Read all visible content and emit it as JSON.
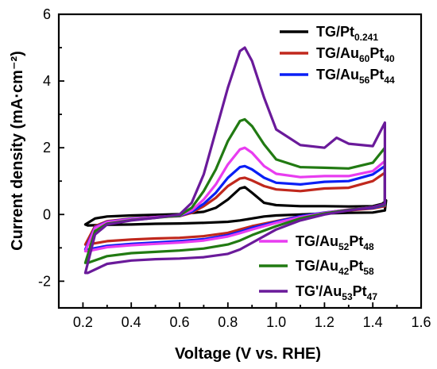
{
  "chart_data": {
    "type": "line",
    "xlabel": "Voltage (V vs. RHE)",
    "ylabel": "Current density (mA·cm⁻²)",
    "xlim": [
      0.1,
      1.6
    ],
    "ylim": [
      -2.8,
      6
    ],
    "xticks": [
      "0.2",
      "0.4",
      "0.6",
      "0.8",
      "1.0",
      "1.2",
      "1.4",
      "1.6"
    ],
    "yticks": [
      "-2",
      "0",
      "2",
      "4",
      "6"
    ],
    "grid": false,
    "legend_placement": "top-right and bottom-right",
    "series": [
      {
        "name": "TG/Pt0.241",
        "label_main": "TG/Pt",
        "label_sub": "0.241",
        "label_tail": "",
        "color": "#000000",
        "upper": [
          [
            0.21,
            -0.3
          ],
          [
            0.25,
            -0.12
          ],
          [
            0.3,
            -0.06
          ],
          [
            0.4,
            -0.03
          ],
          [
            0.5,
            -0.01
          ],
          [
            0.6,
            0.01
          ],
          [
            0.7,
            0.08
          ],
          [
            0.75,
            0.2
          ],
          [
            0.8,
            0.45
          ],
          [
            0.85,
            0.78
          ],
          [
            0.87,
            0.82
          ],
          [
            0.9,
            0.65
          ],
          [
            0.95,
            0.35
          ],
          [
            1.0,
            0.28
          ],
          [
            1.1,
            0.25
          ],
          [
            1.2,
            0.25
          ],
          [
            1.3,
            0.24
          ],
          [
            1.4,
            0.25
          ],
          [
            1.44,
            0.32
          ],
          [
            1.455,
            0.42
          ]
        ],
        "lower": [
          [
            1.455,
            0.42
          ],
          [
            1.45,
            0.12
          ],
          [
            1.4,
            0.06
          ],
          [
            1.3,
            0.05
          ],
          [
            1.2,
            0.03
          ],
          [
            1.1,
            0.0
          ],
          [
            1.0,
            -0.03
          ],
          [
            0.95,
            -0.06
          ],
          [
            0.9,
            -0.12
          ],
          [
            0.85,
            -0.18
          ],
          [
            0.8,
            -0.22
          ],
          [
            0.7,
            -0.25
          ],
          [
            0.6,
            -0.27
          ],
          [
            0.5,
            -0.28
          ],
          [
            0.4,
            -0.3
          ],
          [
            0.3,
            -0.31
          ],
          [
            0.22,
            -0.33
          ],
          [
            0.21,
            -0.3
          ]
        ]
      },
      {
        "name": "TG/Au60Pt40",
        "label_main": "TG/Au",
        "label_sub": "60",
        "label_tail": "Pt",
        "label_sub2": "40",
        "color": "#c0281d",
        "upper": [
          [
            0.21,
            -0.9
          ],
          [
            0.25,
            -0.35
          ],
          [
            0.3,
            -0.2
          ],
          [
            0.4,
            -0.12
          ],
          [
            0.5,
            -0.08
          ],
          [
            0.6,
            -0.05
          ],
          [
            0.65,
            0.05
          ],
          [
            0.7,
            0.25
          ],
          [
            0.75,
            0.5
          ],
          [
            0.8,
            0.85
          ],
          [
            0.85,
            1.08
          ],
          [
            0.87,
            1.1
          ],
          [
            0.9,
            1.02
          ],
          [
            0.95,
            0.85
          ],
          [
            1.0,
            0.75
          ],
          [
            1.1,
            0.7
          ],
          [
            1.2,
            0.78
          ],
          [
            1.3,
            0.8
          ],
          [
            1.4,
            1.0
          ],
          [
            1.45,
            1.25
          ]
        ],
        "lower": [
          [
            1.45,
            1.25
          ],
          [
            1.45,
            0.25
          ],
          [
            1.4,
            0.18
          ],
          [
            1.3,
            0.12
          ],
          [
            1.2,
            0.05
          ],
          [
            1.1,
            -0.05
          ],
          [
            1.0,
            -0.2
          ],
          [
            0.9,
            -0.35
          ],
          [
            0.85,
            -0.45
          ],
          [
            0.8,
            -0.55
          ],
          [
            0.7,
            -0.65
          ],
          [
            0.6,
            -0.7
          ],
          [
            0.5,
            -0.72
          ],
          [
            0.4,
            -0.75
          ],
          [
            0.3,
            -0.8
          ],
          [
            0.22,
            -0.9
          ],
          [
            0.21,
            -0.9
          ]
        ]
      },
      {
        "name": "TG/Au56Pt44",
        "label_main": "TG/Au",
        "label_sub": "56",
        "label_tail": "Pt",
        "label_sub2": "44",
        "color": "#0a1ff5",
        "upper": [
          [
            0.21,
            -1.05
          ],
          [
            0.25,
            -0.38
          ],
          [
            0.3,
            -0.22
          ],
          [
            0.4,
            -0.13
          ],
          [
            0.5,
            -0.08
          ],
          [
            0.6,
            -0.04
          ],
          [
            0.65,
            0.08
          ],
          [
            0.7,
            0.32
          ],
          [
            0.75,
            0.65
          ],
          [
            0.8,
            1.1
          ],
          [
            0.85,
            1.42
          ],
          [
            0.87,
            1.45
          ],
          [
            0.9,
            1.35
          ],
          [
            0.95,
            1.1
          ],
          [
            1.0,
            0.95
          ],
          [
            1.1,
            0.9
          ],
          [
            1.2,
            0.98
          ],
          [
            1.3,
            1.0
          ],
          [
            1.4,
            1.2
          ],
          [
            1.45,
            1.45
          ]
        ],
        "lower": [
          [
            1.45,
            1.45
          ],
          [
            1.45,
            0.28
          ],
          [
            1.4,
            0.2
          ],
          [
            1.3,
            0.14
          ],
          [
            1.2,
            0.06
          ],
          [
            1.1,
            -0.05
          ],
          [
            1.0,
            -0.22
          ],
          [
            0.9,
            -0.4
          ],
          [
            0.85,
            -0.52
          ],
          [
            0.8,
            -0.62
          ],
          [
            0.7,
            -0.74
          ],
          [
            0.6,
            -0.8
          ],
          [
            0.5,
            -0.84
          ],
          [
            0.4,
            -0.88
          ],
          [
            0.3,
            -0.94
          ],
          [
            0.22,
            -1.05
          ],
          [
            0.21,
            -1.05
          ]
        ]
      },
      {
        "name": "TG/Au52Pt48",
        "label_main": "TG/Au",
        "label_sub": "52",
        "label_tail": "Pt",
        "label_sub2": "48",
        "color": "#e83cf0",
        "upper": [
          [
            0.21,
            -1.1
          ],
          [
            0.25,
            -0.4
          ],
          [
            0.3,
            -0.23
          ],
          [
            0.4,
            -0.14
          ],
          [
            0.5,
            -0.08
          ],
          [
            0.6,
            -0.03
          ],
          [
            0.65,
            0.12
          ],
          [
            0.7,
            0.45
          ],
          [
            0.75,
            0.9
          ],
          [
            0.8,
            1.5
          ],
          [
            0.85,
            1.95
          ],
          [
            0.87,
            2.0
          ],
          [
            0.9,
            1.85
          ],
          [
            0.95,
            1.45
          ],
          [
            1.0,
            1.22
          ],
          [
            1.1,
            1.12
          ],
          [
            1.2,
            1.15
          ],
          [
            1.3,
            1.15
          ],
          [
            1.4,
            1.3
          ],
          [
            1.45,
            1.6
          ]
        ],
        "lower": [
          [
            1.45,
            1.6
          ],
          [
            1.45,
            0.3
          ],
          [
            1.4,
            0.22
          ],
          [
            1.3,
            0.15
          ],
          [
            1.2,
            0.05
          ],
          [
            1.1,
            -0.08
          ],
          [
            1.0,
            -0.25
          ],
          [
            0.9,
            -0.45
          ],
          [
            0.85,
            -0.56
          ],
          [
            0.8,
            -0.66
          ],
          [
            0.7,
            -0.78
          ],
          [
            0.6,
            -0.84
          ],
          [
            0.5,
            -0.88
          ],
          [
            0.4,
            -0.92
          ],
          [
            0.3,
            -0.98
          ],
          [
            0.22,
            -1.1
          ],
          [
            0.21,
            -1.1
          ]
        ]
      },
      {
        "name": "TG/Au42Pt58",
        "label_main": "TG/Au",
        "label_sub": "42",
        "label_tail": "Pt",
        "label_sub2": "58",
        "color": "#217a12",
        "upper": [
          [
            0.21,
            -1.45
          ],
          [
            0.25,
            -0.5
          ],
          [
            0.3,
            -0.28
          ],
          [
            0.4,
            -0.17
          ],
          [
            0.5,
            -0.1
          ],
          [
            0.6,
            -0.03
          ],
          [
            0.65,
            0.2
          ],
          [
            0.7,
            0.7
          ],
          [
            0.75,
            1.35
          ],
          [
            0.8,
            2.2
          ],
          [
            0.85,
            2.8
          ],
          [
            0.87,
            2.85
          ],
          [
            0.9,
            2.65
          ],
          [
            0.95,
            2.1
          ],
          [
            1.0,
            1.65
          ],
          [
            1.1,
            1.42
          ],
          [
            1.2,
            1.4
          ],
          [
            1.3,
            1.38
          ],
          [
            1.4,
            1.55
          ],
          [
            1.45,
            2.0
          ]
        ],
        "lower": [
          [
            1.45,
            2.0
          ],
          [
            1.45,
            0.3
          ],
          [
            1.4,
            0.22
          ],
          [
            1.3,
            0.14
          ],
          [
            1.2,
            0.03
          ],
          [
            1.1,
            -0.12
          ],
          [
            1.0,
            -0.35
          ],
          [
            0.9,
            -0.62
          ],
          [
            0.85,
            -0.78
          ],
          [
            0.8,
            -0.9
          ],
          [
            0.7,
            -1.02
          ],
          [
            0.6,
            -1.08
          ],
          [
            0.5,
            -1.12
          ],
          [
            0.4,
            -1.16
          ],
          [
            0.3,
            -1.25
          ],
          [
            0.22,
            -1.45
          ],
          [
            0.21,
            -1.45
          ]
        ]
      },
      {
        "name": "TG'/Au53Pt47",
        "label_main": "TG'/Au",
        "label_sub": "53",
        "label_tail": "Pt",
        "label_sub2": "47",
        "color": "#6a1a9a",
        "upper": [
          [
            0.21,
            -1.75
          ],
          [
            0.25,
            -0.6
          ],
          [
            0.3,
            -0.3
          ],
          [
            0.4,
            -0.18
          ],
          [
            0.5,
            -0.1
          ],
          [
            0.6,
            0.0
          ],
          [
            0.65,
            0.35
          ],
          [
            0.7,
            1.2
          ],
          [
            0.75,
            2.5
          ],
          [
            0.8,
            3.8
          ],
          [
            0.85,
            4.9
          ],
          [
            0.87,
            5.0
          ],
          [
            0.9,
            4.6
          ],
          [
            0.95,
            3.5
          ],
          [
            1.0,
            2.55
          ],
          [
            1.1,
            2.08
          ],
          [
            1.2,
            2.0
          ],
          [
            1.25,
            2.3
          ],
          [
            1.3,
            2.12
          ],
          [
            1.4,
            2.05
          ],
          [
            1.45,
            2.75
          ]
        ],
        "lower": [
          [
            1.45,
            2.75
          ],
          [
            1.45,
            0.32
          ],
          [
            1.4,
            0.22
          ],
          [
            1.3,
            0.12
          ],
          [
            1.2,
            0.0
          ],
          [
            1.1,
            -0.18
          ],
          [
            1.0,
            -0.45
          ],
          [
            0.9,
            -0.85
          ],
          [
            0.85,
            -1.05
          ],
          [
            0.8,
            -1.18
          ],
          [
            0.7,
            -1.28
          ],
          [
            0.6,
            -1.32
          ],
          [
            0.5,
            -1.34
          ],
          [
            0.4,
            -1.38
          ],
          [
            0.3,
            -1.48
          ],
          [
            0.22,
            -1.75
          ],
          [
            0.21,
            -1.75
          ]
        ]
      }
    ]
  }
}
